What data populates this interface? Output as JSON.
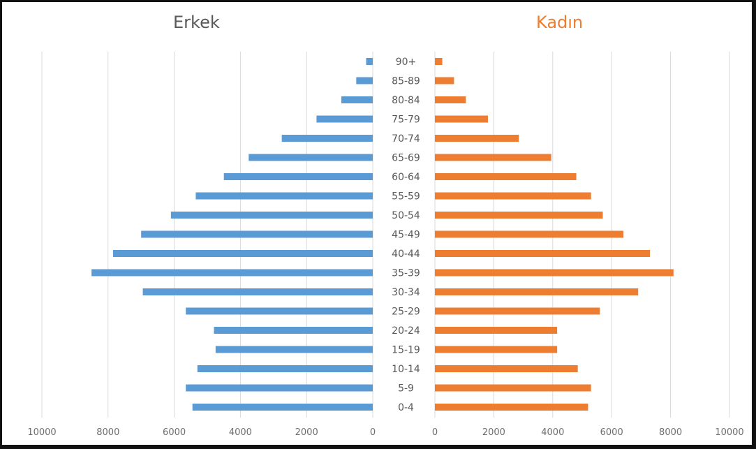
{
  "chart_data": {
    "type": "bar",
    "orientation": "horizontal-population-pyramid",
    "categories": [
      "0-4",
      "5-9",
      "10-14",
      "15-19",
      "20-24",
      "25-29",
      "30-34",
      "35-39",
      "40-44",
      "45-49",
      "50-54",
      "55-59",
      "60-64",
      "65-69",
      "70-74",
      "75-79",
      "80-84",
      "85-89",
      "90+"
    ],
    "series": [
      {
        "name": "Erkek",
        "color": "#5b9bd5",
        "values": [
          5450,
          5650,
          5300,
          4750,
          4800,
          5650,
          6950,
          8500,
          7850,
          7000,
          6100,
          5350,
          4500,
          3750,
          2750,
          1700,
          950,
          500,
          200
        ]
      },
      {
        "name": "Kadın",
        "color": "#ed7d31",
        "values": [
          5200,
          5300,
          4850,
          4150,
          4150,
          5600,
          6900,
          8100,
          7300,
          6400,
          5700,
          5300,
          4800,
          3950,
          2850,
          1800,
          1050,
          650,
          250
        ]
      }
    ],
    "x_ticks_left": [
      "10000",
      "8000",
      "6000",
      "4000",
      "2000",
      "0"
    ],
    "x_ticks_right": [
      "0",
      "2000",
      "4000",
      "6000",
      "8000",
      "10000"
    ],
    "xlim": [
      0,
      10000
    ],
    "grid": true
  },
  "labels": {
    "left_header": "Erkek",
    "right_header": "Kadın",
    "left_header_color": "#595959",
    "right_header_color": "#ed7d31"
  }
}
